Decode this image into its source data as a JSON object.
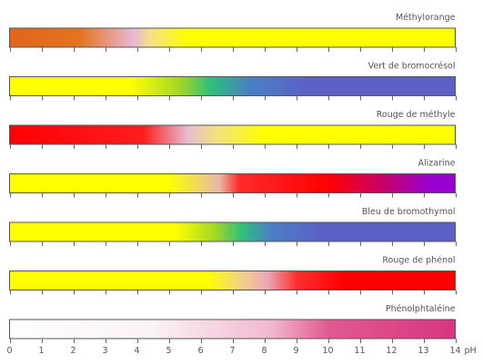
{
  "axis": {
    "min": 0,
    "max": 14,
    "tick_labels": [
      "0",
      "1",
      "2",
      "3",
      "4",
      "5",
      "6",
      "7",
      "8",
      "9",
      "10",
      "11",
      "12",
      "13",
      "14"
    ],
    "unit": "pH"
  },
  "indicators": [
    {
      "name": "Méthylorange",
      "stops": [
        {
          "ph": 0,
          "color": "#e0651a"
        },
        {
          "ph": 2.2,
          "color": "#e4741f"
        },
        {
          "ph": 3.9,
          "color": "#e8b8d8"
        },
        {
          "ph": 4.4,
          "color": "#f5df8a"
        },
        {
          "ph": 5.6,
          "color": "#ffff00"
        },
        {
          "ph": 14,
          "color": "#ffff00"
        }
      ]
    },
    {
      "name": "Vert de bromocrésol",
      "stops": [
        {
          "ph": 0,
          "color": "#ffff00"
        },
        {
          "ph": 3.8,
          "color": "#ffff00"
        },
        {
          "ph": 5.4,
          "color": "#9fd628"
        },
        {
          "ph": 6.3,
          "color": "#2fbf7a"
        },
        {
          "ph": 7.6,
          "color": "#4a7fc4"
        },
        {
          "ph": 9.5,
          "color": "#5c5fc6"
        },
        {
          "ph": 14,
          "color": "#5c5fc6"
        }
      ]
    },
    {
      "name": "Rouge de méthyle",
      "stops": [
        {
          "ph": 0,
          "color": "#ff0000"
        },
        {
          "ph": 4.2,
          "color": "#ff1e1e"
        },
        {
          "ph": 5.6,
          "color": "#e6bcd2"
        },
        {
          "ph": 6.5,
          "color": "#f2e17f"
        },
        {
          "ph": 8.0,
          "color": "#ffff00"
        },
        {
          "ph": 14,
          "color": "#ffff00"
        }
      ]
    },
    {
      "name": "Alizarine",
      "stops": [
        {
          "ph": 0,
          "color": "#ffff00"
        },
        {
          "ph": 5.0,
          "color": "#ffff00"
        },
        {
          "ph": 6.6,
          "color": "#e8b8a8"
        },
        {
          "ph": 7.2,
          "color": "#ff2a2a"
        },
        {
          "ph": 10.0,
          "color": "#ff0000"
        },
        {
          "ph": 12.0,
          "color": "#c0007a"
        },
        {
          "ph": 13.2,
          "color": "#9800d0"
        },
        {
          "ph": 14,
          "color": "#9800d0"
        }
      ]
    },
    {
      "name": "Bleu de bromothymol",
      "stops": [
        {
          "ph": 0,
          "color": "#ffff00"
        },
        {
          "ph": 5.2,
          "color": "#ffff00"
        },
        {
          "ph": 6.5,
          "color": "#9fd628"
        },
        {
          "ph": 7.3,
          "color": "#2fbf7a"
        },
        {
          "ph": 8.2,
          "color": "#4a7fc4"
        },
        {
          "ph": 9.8,
          "color": "#5c5fc6"
        },
        {
          "ph": 14,
          "color": "#5c5fc6"
        }
      ]
    },
    {
      "name": "Rouge de phénol",
      "stops": [
        {
          "ph": 0,
          "color": "#ffff00"
        },
        {
          "ph": 6.2,
          "color": "#ffff00"
        },
        {
          "ph": 7.3,
          "color": "#f4d08a"
        },
        {
          "ph": 8.1,
          "color": "#e8a8b8"
        },
        {
          "ph": 9.0,
          "color": "#ff3030"
        },
        {
          "ph": 10.5,
          "color": "#ff0000"
        },
        {
          "ph": 14,
          "color": "#ff0000"
        }
      ]
    },
    {
      "name": "Phénolphtaléine",
      "stops": [
        {
          "ph": 0,
          "color": "#ffffff"
        },
        {
          "ph": 4.5,
          "color": "#fbf3f6"
        },
        {
          "ph": 8.2,
          "color": "#f2b8cf"
        },
        {
          "ph": 10.0,
          "color": "#e05a92"
        },
        {
          "ph": 14,
          "color": "#d8357e"
        }
      ]
    }
  ]
}
